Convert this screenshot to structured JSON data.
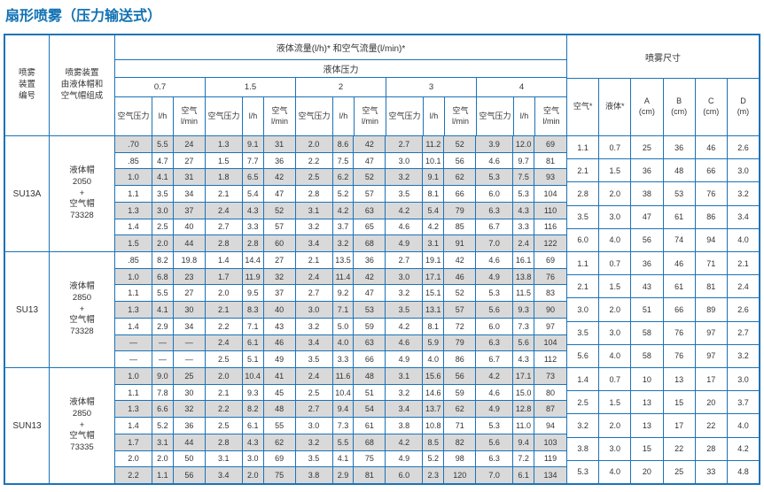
{
  "page_title": "扇形喷雾（压力输送式）",
  "colors": {
    "border_blue": "#1b73b8",
    "title_blue": "#1272b4",
    "row_shade": "#d9d9d9"
  },
  "table": {
    "header": {
      "device_number": "喷雾\n装置\n编号",
      "device_composition": "喷雾装置\n由液体帽和\n空气帽组成",
      "flow_title": "液体流量(l/h)* 和空气流量(l/min)*",
      "pressure_title": "液体压力",
      "pressures": [
        "0.7",
        "1.5",
        "2",
        "3",
        "4"
      ],
      "sub_air_pressure": "空气压力",
      "sub_lh": "l/h",
      "sub_air_lmin": "空气\nl/min",
      "spray_size_title": "喷雾尺寸",
      "size_headers": [
        {
          "label": "空气*",
          "unit": ""
        },
        {
          "label": "液体*",
          "unit": ""
        },
        {
          "label": "A",
          "unit": "(cm)"
        },
        {
          "label": "B",
          "unit": "(cm)"
        },
        {
          "label": "C",
          "unit": "(cm)"
        },
        {
          "label": "D",
          "unit": "(m)"
        }
      ]
    },
    "blocks": [
      {
        "model": "SU13A",
        "composition": "液体帽\n2050\n+\n空气帽\n73328",
        "shaded_rows": [
          0,
          2,
          4,
          6
        ],
        "rows": [
          [
            ".70",
            "5.5",
            "24",
            "1.3",
            "9.1",
            "31",
            "2.0",
            "8.6",
            "42",
            "2.7",
            "11.2",
            "52",
            "3.9",
            "12.0",
            "69"
          ],
          [
            ".85",
            "4.7",
            "27",
            "1.5",
            "7.7",
            "36",
            "2.2",
            "7.5",
            "47",
            "3.0",
            "10.1",
            "56",
            "4.6",
            "9.7",
            "81"
          ],
          [
            "1.0",
            "4.1",
            "31",
            "1.8",
            "6.5",
            "42",
            "2.5",
            "6.2",
            "52",
            "3.2",
            "9.1",
            "62",
            "5.3",
            "7.5",
            "93"
          ],
          [
            "1.1",
            "3.5",
            "34",
            "2.1",
            "5.4",
            "47",
            "2.8",
            "5.2",
            "57",
            "3.5",
            "8.1",
            "66",
            "6.0",
            "5.3",
            "104"
          ],
          [
            "1.3",
            "3.0",
            "37",
            "2.4",
            "4.3",
            "52",
            "3.1",
            "4.2",
            "63",
            "4.2",
            "5.4",
            "79",
            "6.3",
            "4.3",
            "110"
          ],
          [
            "1.4",
            "2.5",
            "40",
            "2.7",
            "3.3",
            "57",
            "3.2",
            "3.7",
            "65",
            "4.6",
            "4.2",
            "85",
            "6.7",
            "3.3",
            "116"
          ],
          [
            "1.5",
            "2.0",
            "44",
            "2.8",
            "2.8",
            "60",
            "3.4",
            "3.2",
            "68",
            "4.9",
            "3.1",
            "91",
            "7.0",
            "2.4",
            "122"
          ]
        ],
        "sizes": [
          [
            "1.1",
            "0.7",
            "25",
            "36",
            "46",
            "2.6"
          ],
          [
            "2.1",
            "1.5",
            "36",
            "48",
            "66",
            "3.0"
          ],
          [
            "2.8",
            "2.0",
            "38",
            "53",
            "76",
            "3.2"
          ],
          [
            "3.5",
            "3.0",
            "47",
            "61",
            "86",
            "3.4"
          ],
          [
            "6.0",
            "4.0",
            "56",
            "74",
            "94",
            "4.0"
          ]
        ]
      },
      {
        "model": "SU13",
        "composition": "液体帽\n2850\n+\n空气帽\n73328",
        "shaded_rows": [
          1,
          3,
          5
        ],
        "rows": [
          [
            ".85",
            "8.2",
            "19.8",
            "1.4",
            "14.4",
            "27",
            "2.1",
            "13.5",
            "36",
            "2.7",
            "19.1",
            "42",
            "4.6",
            "16.1",
            "69"
          ],
          [
            "1.0",
            "6.8",
            "23",
            "1.7",
            "11.9",
            "32",
            "2.4",
            "11.4",
            "42",
            "3.0",
            "17.1",
            "46",
            "4.9",
            "13.8",
            "76"
          ],
          [
            "1.1",
            "5.5",
            "27",
            "2.0",
            "9.5",
            "37",
            "2.7",
            "9.2",
            "47",
            "3.2",
            "15.1",
            "52",
            "5.3",
            "11.5",
            "83"
          ],
          [
            "1.3",
            "4.1",
            "30",
            "2.1",
            "8.3",
            "40",
            "3.0",
            "7.1",
            "53",
            "3.5",
            "13.1",
            "57",
            "5.6",
            "9.3",
            "90"
          ],
          [
            "1.4",
            "2.9",
            "34",
            "2.2",
            "7.1",
            "43",
            "3.2",
            "5.0",
            "59",
            "4.2",
            "8.1",
            "72",
            "6.0",
            "7.3",
            "97"
          ],
          [
            "—",
            "—",
            "—",
            "2.4",
            "6.1",
            "46",
            "3.4",
            "4.0",
            "63",
            "4.6",
            "5.9",
            "79",
            "6.3",
            "5.6",
            "104"
          ],
          [
            "—",
            "—",
            "—",
            "2.5",
            "5.1",
            "49",
            "3.5",
            "3.3",
            "66",
            "4.9",
            "4.0",
            "86",
            "6.7",
            "4.3",
            "112"
          ]
        ],
        "sizes": [
          [
            "1.1",
            "0.7",
            "36",
            "46",
            "71",
            "2.1"
          ],
          [
            "2.1",
            "1.5",
            "43",
            "61",
            "81",
            "2.4"
          ],
          [
            "3.0",
            "2.0",
            "51",
            "66",
            "89",
            "2.6"
          ],
          [
            "3.5",
            "3.0",
            "58",
            "76",
            "97",
            "2.7"
          ],
          [
            "5.6",
            "4.0",
            "58",
            "76",
            "97",
            "3.2"
          ]
        ]
      },
      {
        "model": "SUN13",
        "composition": "液体帽\n2850\n+\n空气帽\n73335",
        "shaded_rows": [
          0,
          2,
          4,
          6
        ],
        "rows": [
          [
            "1.0",
            "9.0",
            "25",
            "2.0",
            "10.4",
            "41",
            "2.4",
            "11.6",
            "48",
            "3.1",
            "15.6",
            "56",
            "4.2",
            "17.1",
            "73"
          ],
          [
            "1.1",
            "7.8",
            "30",
            "2.1",
            "9.3",
            "45",
            "2.5",
            "10.4",
            "51",
            "3.2",
            "14.6",
            "59",
            "4.6",
            "15.0",
            "80"
          ],
          [
            "1.3",
            "6.6",
            "32",
            "2.2",
            "8.2",
            "48",
            "2.7",
            "9.4",
            "54",
            "3.4",
            "13.7",
            "62",
            "4.9",
            "12.8",
            "87"
          ],
          [
            "1.4",
            "5.2",
            "36",
            "2.5",
            "6.1",
            "55",
            "3.0",
            "7.3",
            "61",
            "3.8",
            "10.8",
            "71",
            "5.3",
            "11.0",
            "94"
          ],
          [
            "1.7",
            "3.1",
            "44",
            "2.8",
            "4.3",
            "62",
            "3.2",
            "5.5",
            "68",
            "4.2",
            "8.5",
            "82",
            "5.6",
            "9.4",
            "103"
          ],
          [
            "2.0",
            "2.0",
            "50",
            "3.1",
            "3.0",
            "69",
            "3.5",
            "4.1",
            "75",
            "4.9",
            "5.2",
            "98",
            "6.3",
            "7.2",
            "119"
          ],
          [
            "2.2",
            "1.1",
            "56",
            "3.4",
            "2.0",
            "75",
            "3.8",
            "2.9",
            "81",
            "6.0",
            "2.3",
            "120",
            "7.0",
            "6.1",
            "134"
          ]
        ],
        "sizes": [
          [
            "1.4",
            "0.7",
            "10",
            "13",
            "17",
            "3.0"
          ],
          [
            "2.5",
            "1.5",
            "13",
            "15",
            "20",
            "3.7"
          ],
          [
            "3.2",
            "2.0",
            "13",
            "17",
            "22",
            "4.0"
          ],
          [
            "3.8",
            "3.0",
            "15",
            "22",
            "28",
            "4.2"
          ],
          [
            "5.3",
            "4.0",
            "20",
            "25",
            "33",
            "4.8"
          ]
        ]
      }
    ]
  }
}
